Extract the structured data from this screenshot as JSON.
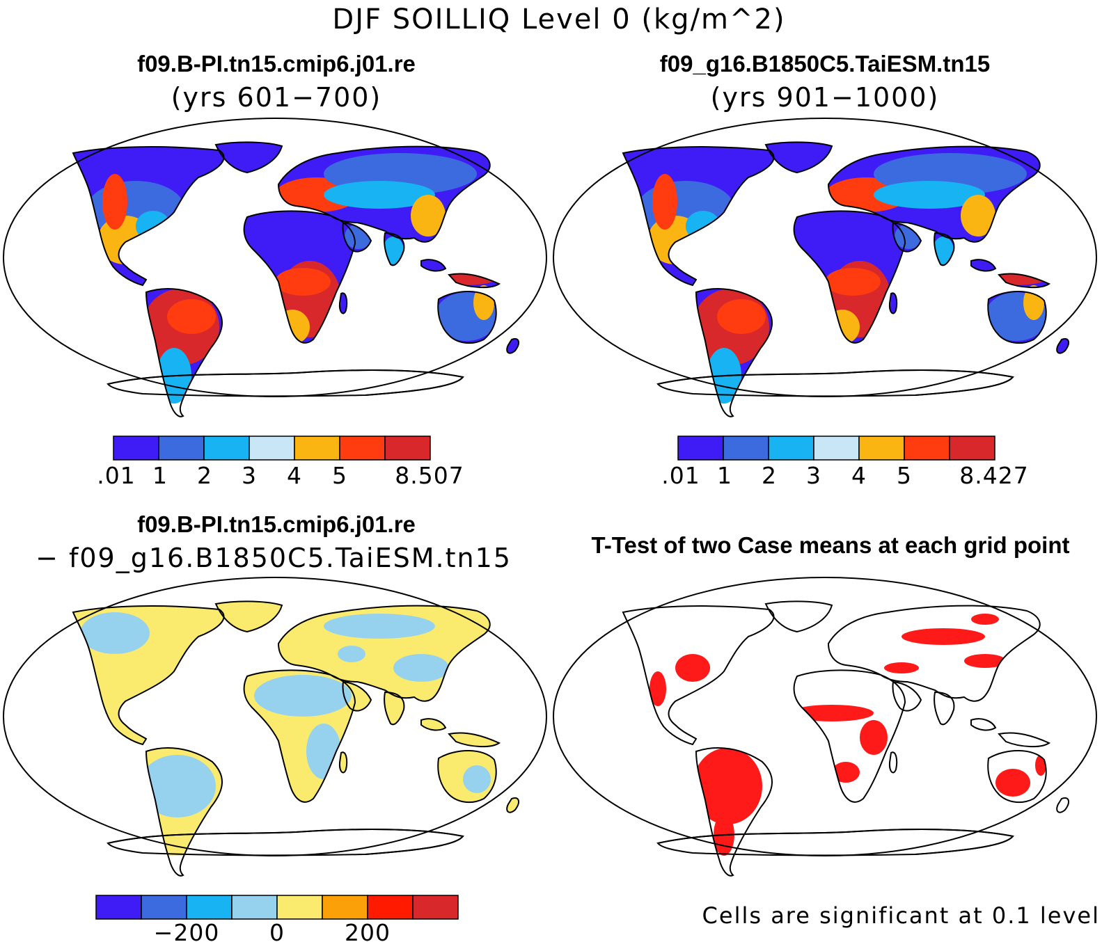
{
  "figure": {
    "title": "DJF SOILLIQ Level 0 (kg/m^2)"
  },
  "panels": [
    {
      "case": "f09.B-PI.tn15.cmip6.j01.re",
      "years": "(yrs 601−700)",
      "colorbar": {
        "colors": [
          "#3f1cf5",
          "#3c6be0",
          "#17b3f2",
          "#c8e6f5",
          "#fbb513",
          "#ff3b10",
          "#d8282c"
        ],
        "tick_labels": [
          ".01",
          "1",
          "2",
          "3",
          "4",
          "5",
          "8.507"
        ]
      }
    },
    {
      "case": "f09_g16.B1850C5.TaiESM.tn15",
      "years": "(yrs 901−1000)",
      "colorbar": {
        "colors": [
          "#3f1cf5",
          "#3c6be0",
          "#17b3f2",
          "#c8e6f5",
          "#fbb513",
          "#ff3b10",
          "#d8282c"
        ],
        "tick_labels": [
          ".01",
          "1",
          "2",
          "3",
          "4",
          "5",
          "8.427"
        ]
      }
    },
    {
      "case": "f09.B-PI.tn15.cmip6.j01.re",
      "minus_case": "− f09_g16.B1850C5.TaiESM.tn15",
      "colorbar": {
        "colors": [
          "#3f1cf5",
          "#3c6be0",
          "#17b3f2",
          "#96d2ee",
          "#faeb6e",
          "#fba009",
          "#ff1a00",
          "#d8282c"
        ],
        "tick_labels": [
          "−200",
          "0",
          "200"
        ]
      }
    },
    {
      "title": "T-Test of two Case means at each grid point",
      "note": "Cells are significant at 0.1 level",
      "highlight_color": "#ff1a1a"
    }
  ],
  "chart_data": [
    {
      "type": "heatmap",
      "title": "f09.B-PI.tn15.cmip6.j01.re (yrs 601−700)",
      "projection": "Robinson",
      "contour_levels": [
        0.01,
        1,
        2,
        3,
        4,
        5,
        8.507
      ],
      "units": "kg/m^2"
    },
    {
      "type": "heatmap",
      "title": "f09_g16.B1850C5.TaiESM.tn15 (yrs 901−1000)",
      "projection": "Robinson",
      "contour_levels": [
        0.01,
        1,
        2,
        3,
        4,
        5,
        8.427
      ],
      "units": "kg/m^2"
    },
    {
      "type": "heatmap",
      "title": "f09.B-PI.tn15.cmip6.j01.re − f09_g16.B1850C5.TaiESM.tn15",
      "projection": "Robinson",
      "colorbar_labels": [
        -200,
        0,
        200
      ]
    },
    {
      "type": "heatmap",
      "title": "T-Test of two Case means at each grid point",
      "projection": "Robinson",
      "significance_level": 0.1
    }
  ]
}
